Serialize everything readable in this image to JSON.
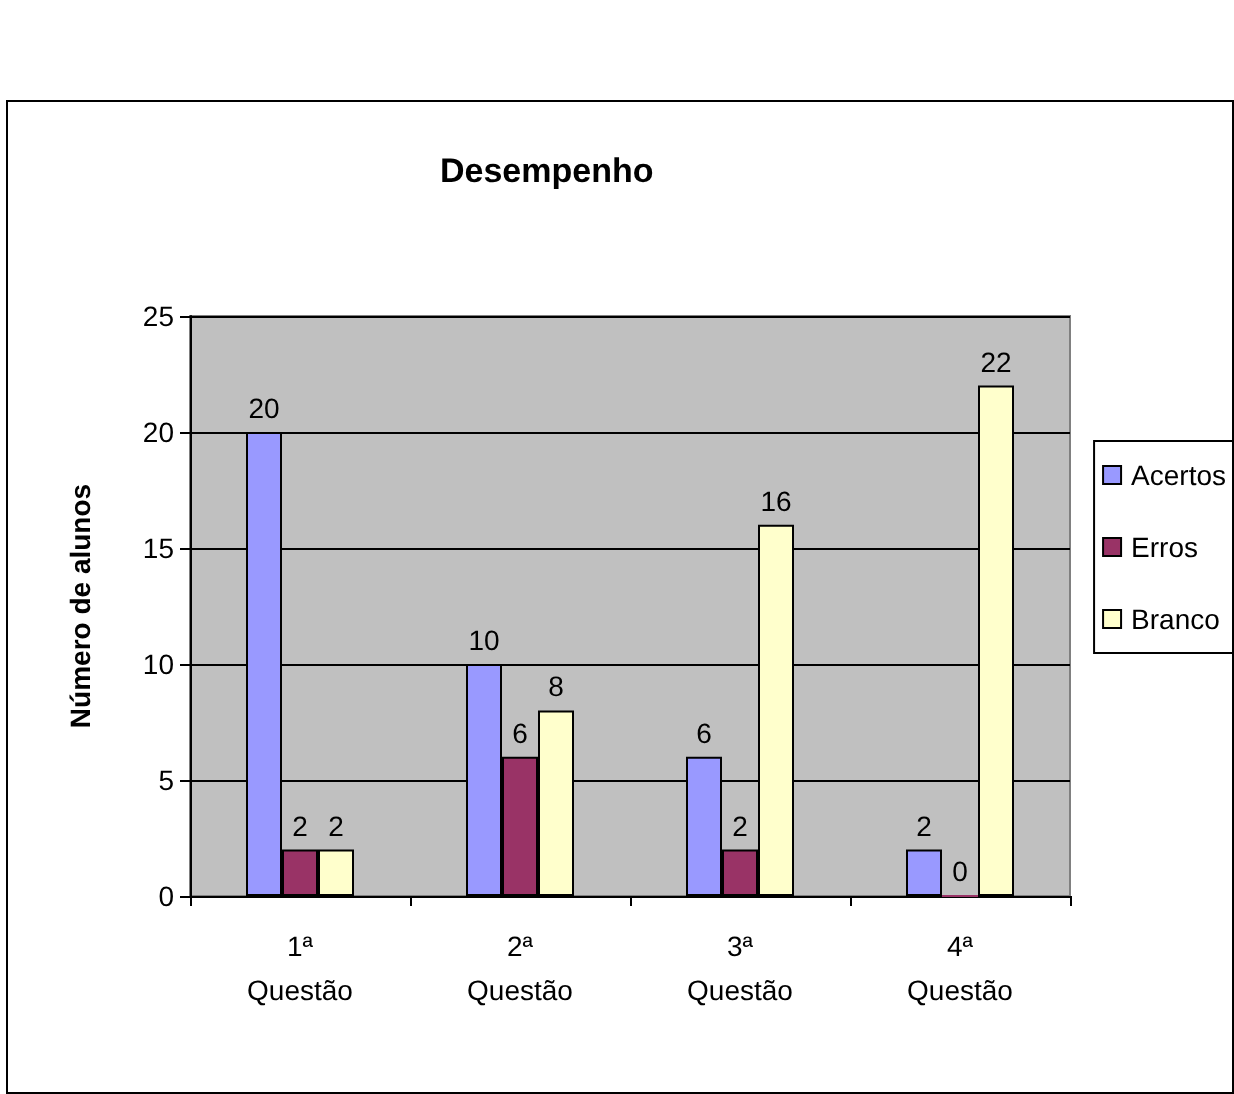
{
  "chart_data": {
    "type": "bar",
    "title": "Desempenho",
    "ylabel": "Número de alunos",
    "categories": [
      "1ª Questão",
      "2ª Questão",
      "3ª Questão",
      "4ª Questão"
    ],
    "series": [
      {
        "name": "Acertos",
        "color": "#9999ff",
        "values": [
          20,
          10,
          6,
          2
        ]
      },
      {
        "name": "Erros",
        "color": "#993366",
        "values": [
          2,
          6,
          2,
          0
        ]
      },
      {
        "name": "Branco",
        "color": "#ffffcc",
        "values": [
          2,
          8,
          16,
          22
        ]
      }
    ],
    "ylim": [
      0,
      25
    ],
    "yticks": [
      0,
      5,
      10,
      15,
      20,
      25
    ],
    "grid": "y",
    "legend": "right",
    "data_labels": true
  }
}
